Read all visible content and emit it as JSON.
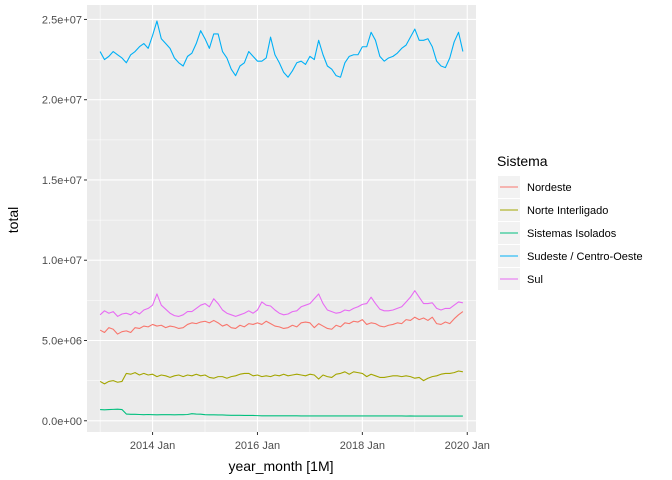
{
  "chart_data": {
    "type": "line",
    "xlabel": "year_month [1M]",
    "ylabel": "total",
    "x_ticks": [
      "2014 Jan",
      "2016 Jan",
      "2018 Jan",
      "2020 Jan"
    ],
    "y_ticks": [
      "0.0e+00",
      "5.0e+06",
      "1.0e+07",
      "1.5e+07",
      "2.0e+07",
      "2.5e+07"
    ],
    "ylim": [
      -700000,
      25900000
    ],
    "xlim": [
      "2012 Oct",
      "2020 Mar"
    ],
    "x_start": "2013 Jan",
    "x": [
      "2013 Jan",
      "2013 Feb",
      "2013 Mar",
      "2013 Apr",
      "2013 May",
      "2013 Jun",
      "2013 Jul",
      "2013 Aug",
      "2013 Sep",
      "2013 Oct",
      "2013 Nov",
      "2013 Dec",
      "2014 Jan",
      "2014 Feb",
      "2014 Mar",
      "2014 Apr",
      "2014 May",
      "2014 Jun",
      "2014 Jul",
      "2014 Aug",
      "2014 Sep",
      "2014 Oct",
      "2014 Nov",
      "2014 Dec",
      "2015 Jan",
      "2015 Feb",
      "2015 Mar",
      "2015 Apr",
      "2015 May",
      "2015 Jun",
      "2015 Jul",
      "2015 Aug",
      "2015 Sep",
      "2015 Oct",
      "2015 Nov",
      "2015 Dec",
      "2016 Jan",
      "2016 Feb",
      "2016 Mar",
      "2016 Apr",
      "2016 May",
      "2016 Jun",
      "2016 Jul",
      "2016 Aug",
      "2016 Sep",
      "2016 Oct",
      "2016 Nov",
      "2016 Dec",
      "2017 Jan",
      "2017 Feb",
      "2017 Mar",
      "2017 Apr",
      "2017 May",
      "2017 Jun",
      "2017 Jul",
      "2017 Aug",
      "2017 Sep",
      "2017 Oct",
      "2017 Nov",
      "2017 Dec",
      "2018 Jan",
      "2018 Feb",
      "2018 Mar",
      "2018 Apr",
      "2018 May",
      "2018 Jun",
      "2018 Jul",
      "2018 Aug",
      "2018 Sep",
      "2018 Oct",
      "2018 Nov",
      "2018 Dec",
      "2019 Jan",
      "2019 Feb",
      "2019 Mar",
      "2019 Apr",
      "2019 May",
      "2019 Jun",
      "2019 Jul",
      "2019 Aug",
      "2019 Sep",
      "2019 Oct",
      "2019 Nov",
      "2019 Dec"
    ],
    "grid": true,
    "legend": {
      "title": "Sistema",
      "position": "right"
    },
    "series": [
      {
        "name": "Nordeste",
        "color": "#F8766D",
        "values": [
          5650000,
          5500000,
          5800000,
          5700000,
          5400000,
          5550000,
          5600000,
          5500000,
          5800000,
          5750000,
          5900000,
          5850000,
          6000000,
          5900000,
          5950000,
          5800000,
          5900000,
          5850000,
          5750000,
          5800000,
          6000000,
          6100000,
          6050000,
          6150000,
          6200000,
          6100000,
          6250000,
          6100000,
          5900000,
          6000000,
          5800000,
          5750000,
          5950000,
          5850000,
          6050000,
          6000000,
          6100000,
          6000000,
          6200000,
          6050000,
          5900000,
          5850000,
          5750000,
          5800000,
          5950000,
          5850000,
          6100000,
          6150000,
          6100000,
          5800000,
          6050000,
          5900000,
          5750000,
          5700000,
          5950000,
          5850000,
          6100000,
          6050000,
          6200000,
          6150000,
          6300000,
          6000000,
          6100000,
          6050000,
          5900000,
          5850000,
          5950000,
          6000000,
          6100000,
          6050000,
          6300000,
          6250000,
          6450000,
          6300000,
          6400000,
          6250000,
          6450000,
          6050000,
          6000000,
          6150000,
          6050000,
          6350000,
          6600000,
          6800000
        ]
      },
      {
        "name": "Norte Interligado",
        "color": "#A3A500",
        "values": [
          2450000,
          2300000,
          2450000,
          2500000,
          2400000,
          2450000,
          2950000,
          2900000,
          3000000,
          2850000,
          2950000,
          2850000,
          2900000,
          2750000,
          2850000,
          2800000,
          2700000,
          2800000,
          2850000,
          2750000,
          2850000,
          2800000,
          2900000,
          2800000,
          2850000,
          2700000,
          2650000,
          2750000,
          2750000,
          2650000,
          2750000,
          2800000,
          2900000,
          2950000,
          2950000,
          2800000,
          2850000,
          2750000,
          2800000,
          2750000,
          2850000,
          2800000,
          2900000,
          2800000,
          2850000,
          2900000,
          2850000,
          2800000,
          2900000,
          2850000,
          2600000,
          2850000,
          2750000,
          2700000,
          2900000,
          2950000,
          3050000,
          2900000,
          3050000,
          3000000,
          2950000,
          2750000,
          2900000,
          2800000,
          2700000,
          2700000,
          2750000,
          2800000,
          2800000,
          2750000,
          2800000,
          2750000,
          2650000,
          2700000,
          2500000,
          2650000,
          2750000,
          2800000,
          2900000,
          2950000,
          2950000,
          3000000,
          3100000,
          3050000
        ]
      },
      {
        "name": "Sistemas Isolados",
        "color": "#00BF7D",
        "values": [
          700000,
          680000,
          700000,
          710000,
          720000,
          700000,
          420000,
          400000,
          400000,
          390000,
          380000,
          390000,
          380000,
          370000,
          380000,
          380000,
          380000,
          370000,
          380000,
          380000,
          390000,
          440000,
          420000,
          410000,
          380000,
          370000,
          370000,
          360000,
          360000,
          350000,
          340000,
          340000,
          340000,
          330000,
          330000,
          330000,
          320000,
          310000,
          310000,
          310000,
          310000,
          310000,
          310000,
          310000,
          310000,
          310000,
          300000,
          300000,
          300000,
          300000,
          300000,
          300000,
          300000,
          300000,
          300000,
          300000,
          300000,
          300000,
          300000,
          300000,
          300000,
          300000,
          300000,
          300000,
          300000,
          300000,
          300000,
          300000,
          300000,
          300000,
          290000,
          300000,
          290000,
          290000,
          290000,
          290000,
          290000,
          290000,
          290000,
          290000,
          290000,
          290000,
          290000,
          290000
        ]
      },
      {
        "name": "Sudeste / Centro-Oeste",
        "color": "#00B0F6",
        "values": [
          23000000,
          22500000,
          22700000,
          23000000,
          22800000,
          22600000,
          22300000,
          22800000,
          23000000,
          23300000,
          23500000,
          23200000,
          24000000,
          24900000,
          23800000,
          23500000,
          23200000,
          22600000,
          22300000,
          22100000,
          22700000,
          22900000,
          23500000,
          24300000,
          23800000,
          23200000,
          24100000,
          24100000,
          23000000,
          22600000,
          21900000,
          21500000,
          22100000,
          22300000,
          23000000,
          22700000,
          22400000,
          22400000,
          22600000,
          23900000,
          22800000,
          22300000,
          21700000,
          21400000,
          21800000,
          22300000,
          22400000,
          22200000,
          22700000,
          22500000,
          23700000,
          22800000,
          22100000,
          21900000,
          21500000,
          21400000,
          22300000,
          22700000,
          22800000,
          22800000,
          23300000,
          23300000,
          24200000,
          23700000,
          22700000,
          22400000,
          22600000,
          22700000,
          22900000,
          23200000,
          23400000,
          23900000,
          24400000,
          23700000,
          23700000,
          23800000,
          23300000,
          22400000,
          22100000,
          22000000,
          22600000,
          23600000,
          24200000,
          23000000
        ]
      },
      {
        "name": "Sul",
        "color": "#E76BF3",
        "values": [
          6600000,
          6850000,
          6700000,
          6800000,
          6500000,
          6650000,
          6700000,
          6600000,
          6800000,
          6650000,
          6900000,
          7000000,
          7200000,
          7900000,
          7200000,
          6950000,
          6700000,
          6550000,
          6500000,
          6600000,
          6800000,
          6800000,
          7000000,
          7200000,
          7300000,
          7100000,
          7600000,
          7300000,
          6900000,
          6700000,
          6600000,
          6500000,
          6600000,
          6700000,
          6850000,
          6700000,
          6900000,
          7400000,
          7200000,
          7150000,
          6900000,
          6700000,
          6600000,
          6650000,
          6800000,
          6850000,
          7100000,
          7200000,
          7300000,
          7600000,
          7900000,
          7300000,
          6900000,
          6800000,
          6700000,
          6750000,
          6900000,
          6850000,
          7000000,
          7100000,
          7250000,
          7300000,
          7700000,
          7300000,
          6950000,
          6850000,
          6850000,
          6900000,
          7000000,
          7100000,
          7400000,
          7700000,
          8100000,
          7700000,
          7300000,
          7300000,
          7350000,
          7000000,
          6900000,
          7000000,
          7000000,
          7200000,
          7400000,
          7350000
        ]
      }
    ]
  }
}
